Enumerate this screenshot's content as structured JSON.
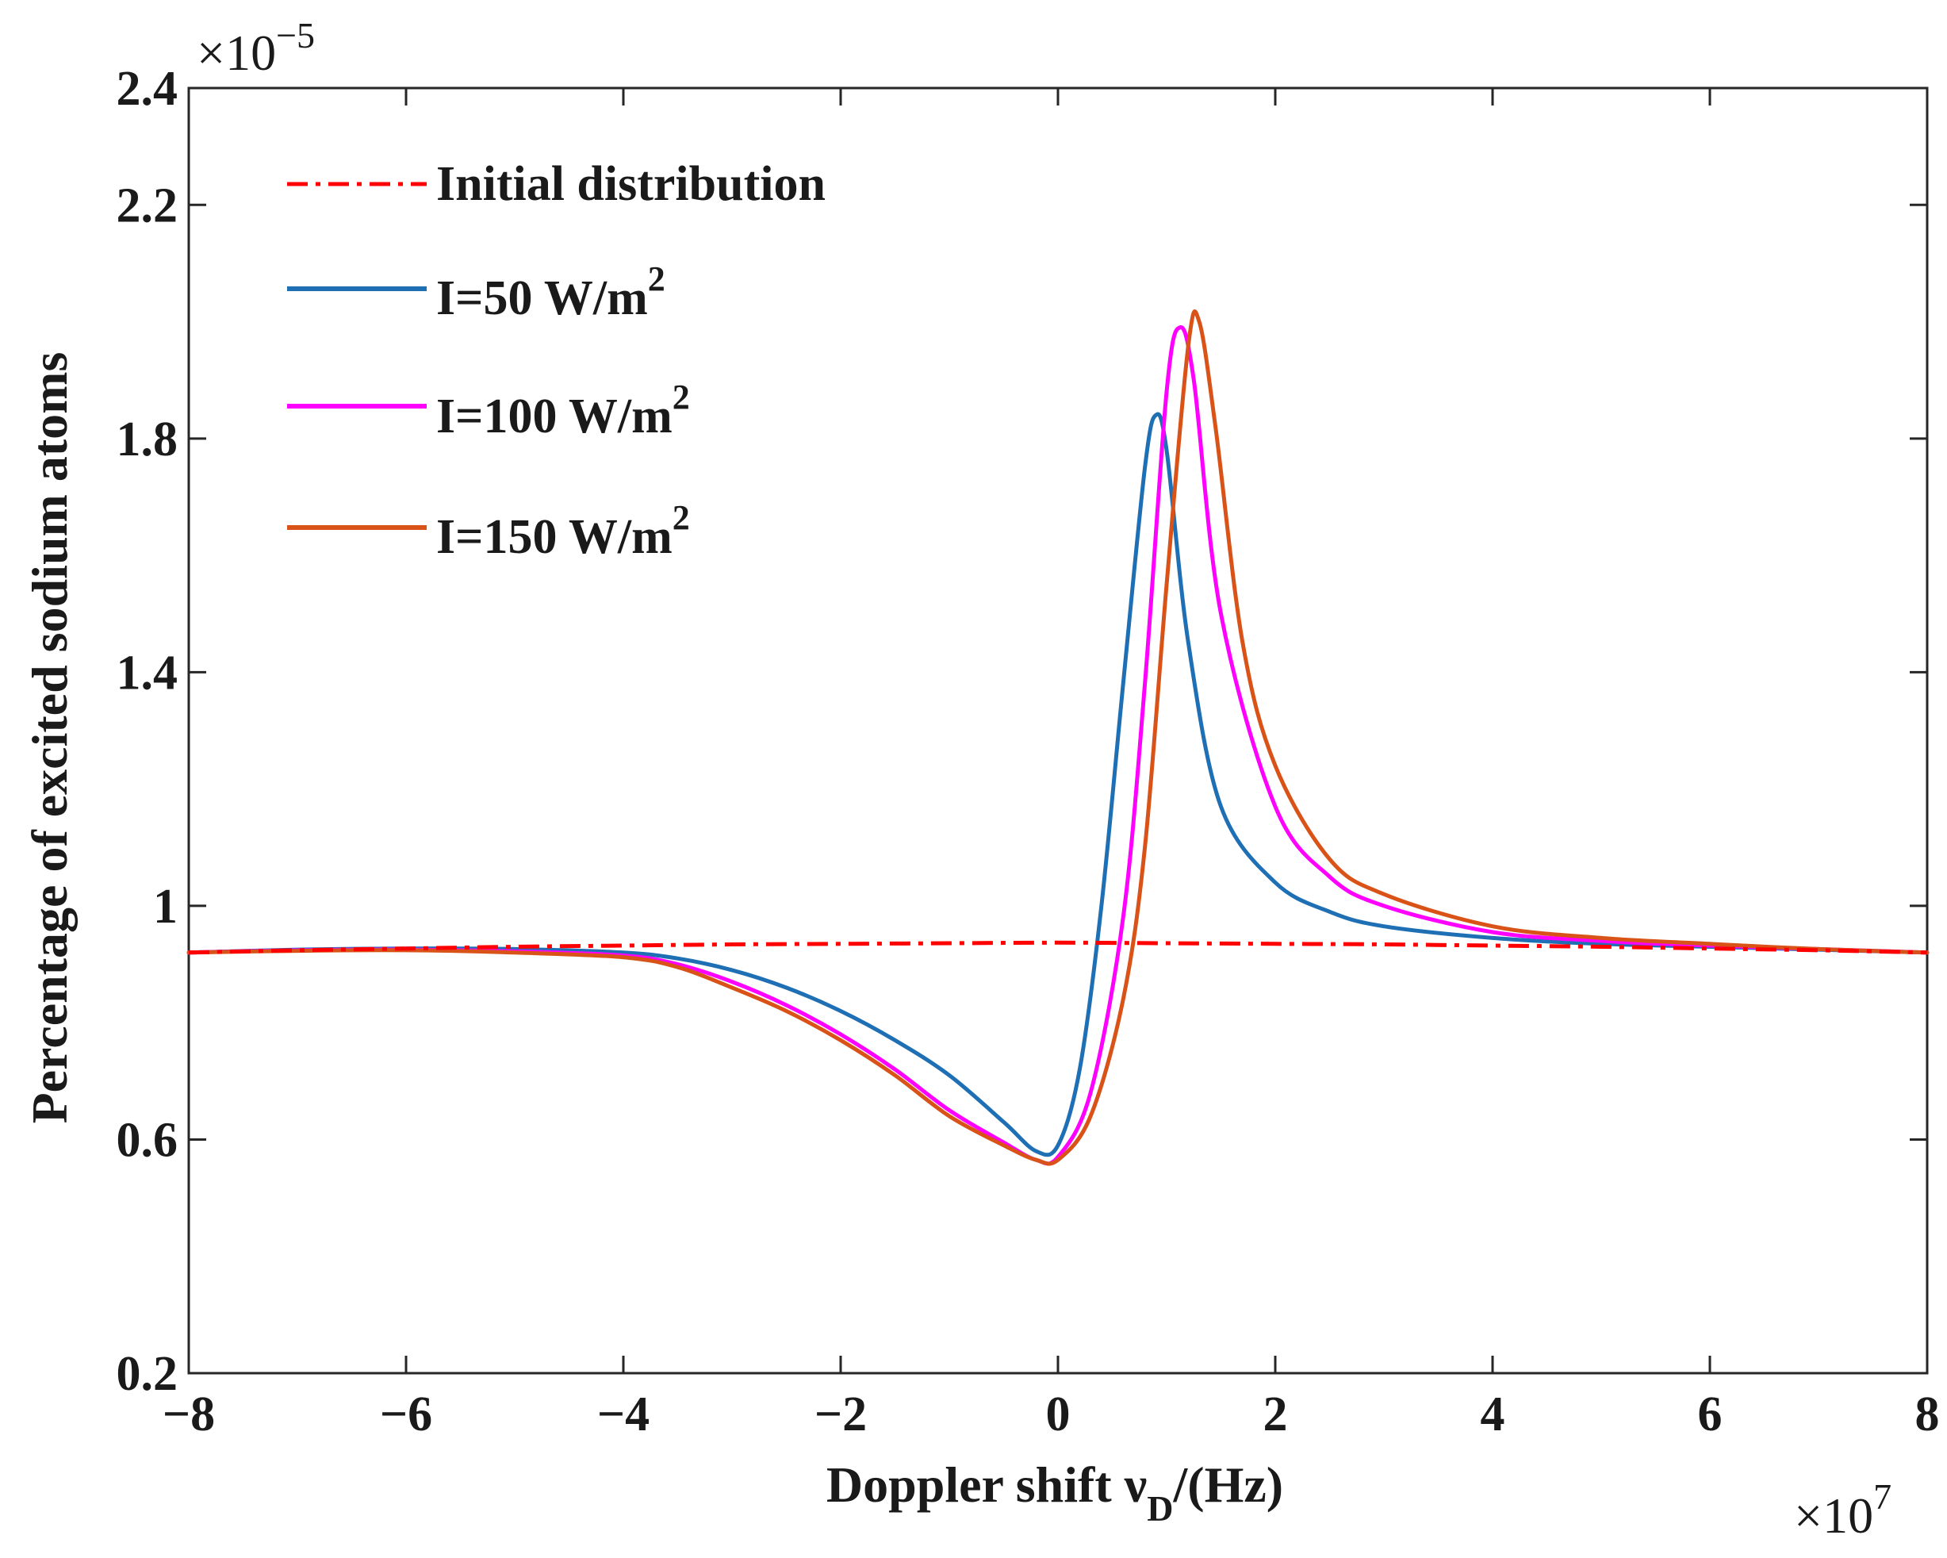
{
  "chart_data": {
    "type": "line",
    "title": "",
    "xlabel": "Doppler  shift ν_D/(Hz)",
    "xlabel_parts": {
      "main": "Doppler  shift ν",
      "sub": "D",
      "tail": "/(Hz)"
    },
    "ylabel": "Percentage of excited sodium atoms",
    "x_multiplier": {
      "prefix": "×10",
      "exp": "7"
    },
    "y_multiplier": {
      "prefix": "×10",
      "exp": "−5"
    },
    "xlim": [
      -8,
      8
    ],
    "ylim": [
      0.2,
      2.4
    ],
    "xticks": [
      -8,
      -6,
      -4,
      -2,
      0,
      2,
      4,
      6,
      8
    ],
    "xtick_labels": [
      "−8",
      "−6",
      "−4",
      "−2",
      "0",
      "2",
      "4",
      "6",
      "8"
    ],
    "yticks": [
      0.2,
      0.6,
      1.0,
      1.4,
      1.8,
      2.2,
      2.4
    ],
    "ytick_labels": [
      "0.2",
      "0.6",
      "1",
      "1.4",
      "1.8",
      "2.2",
      "2.4"
    ],
    "grid": false,
    "legend_position": "top-left",
    "series": [
      {
        "name": "Initial distribution",
        "legend_main": "Initial distribution",
        "legend_sup": "",
        "color": "#ff0000",
        "style": "dashdot",
        "x": [
          -8,
          -7,
          -6,
          -5,
          -4,
          -3,
          -2,
          -1,
          0,
          1,
          2,
          3,
          4,
          5,
          6,
          7,
          8
        ],
        "values": [
          0.92,
          0.924,
          0.927,
          0.93,
          0.932,
          0.934,
          0.935,
          0.936,
          0.937,
          0.936,
          0.935,
          0.934,
          0.932,
          0.93,
          0.927,
          0.924,
          0.92
        ]
      },
      {
        "name": "I=50 W/m2",
        "legend_main": "I=50 W/m",
        "legend_sup": "2",
        "color": "#1f6fb5",
        "style": "solid",
        "x": [
          -8,
          -7,
          -6,
          -5,
          -4,
          -3.5,
          -3,
          -2.5,
          -2,
          -1.5,
          -1,
          -0.5,
          -0.2,
          0,
          0.2,
          0.4,
          0.6,
          0.8,
          0.9,
          1.0,
          1.2,
          1.5,
          2,
          2.5,
          3,
          4,
          5,
          6,
          7,
          8
        ],
        "values": [
          0.92,
          0.925,
          0.927,
          0.926,
          0.92,
          0.91,
          0.89,
          0.86,
          0.82,
          0.77,
          0.71,
          0.63,
          0.58,
          0.59,
          0.72,
          1.0,
          1.38,
          1.75,
          1.84,
          1.78,
          1.45,
          1.17,
          1.04,
          0.99,
          0.965,
          0.945,
          0.935,
          0.93,
          0.925,
          0.92
        ]
      },
      {
        "name": "I=100 W/m2",
        "legend_main": "I=100 W/m",
        "legend_sup": "2",
        "color": "#ff00ff",
        "style": "solid",
        "x": [
          -8,
          -7,
          -6,
          -5,
          -4,
          -3.5,
          -3,
          -2.5,
          -2,
          -1.5,
          -1,
          -0.5,
          -0.2,
          0,
          0.3,
          0.6,
          0.8,
          1.0,
          1.12,
          1.25,
          1.5,
          2,
          2.5,
          3,
          4,
          5,
          6,
          7,
          8
        ],
        "values": [
          0.92,
          0.924,
          0.925,
          0.922,
          0.915,
          0.9,
          0.87,
          0.83,
          0.78,
          0.72,
          0.65,
          0.595,
          0.565,
          0.57,
          0.68,
          0.98,
          1.38,
          1.88,
          1.99,
          1.9,
          1.5,
          1.17,
          1.05,
          1.0,
          0.955,
          0.94,
          0.932,
          0.926,
          0.92
        ]
      },
      {
        "name": "I=150 W/m2",
        "legend_main": "I=150 W/m",
        "legend_sup": "2",
        "color": "#d95319",
        "style": "solid",
        "x": [
          -8,
          -7,
          -6,
          -5,
          -4,
          -3.5,
          -3,
          -2.5,
          -2,
          -1.5,
          -1,
          -0.5,
          -0.2,
          0,
          0.3,
          0.6,
          0.8,
          1.0,
          1.2,
          1.3,
          1.45,
          1.7,
          2,
          2.5,
          3,
          4,
          5,
          6,
          7,
          8
        ],
        "values": [
          0.92,
          0.923,
          0.924,
          0.92,
          0.912,
          0.895,
          0.86,
          0.82,
          0.77,
          0.71,
          0.64,
          0.59,
          0.565,
          0.565,
          0.64,
          0.84,
          1.1,
          1.55,
          1.96,
          2.0,
          1.82,
          1.45,
          1.24,
          1.08,
          1.02,
          0.965,
          0.945,
          0.935,
          0.926,
          0.92
        ]
      }
    ]
  }
}
